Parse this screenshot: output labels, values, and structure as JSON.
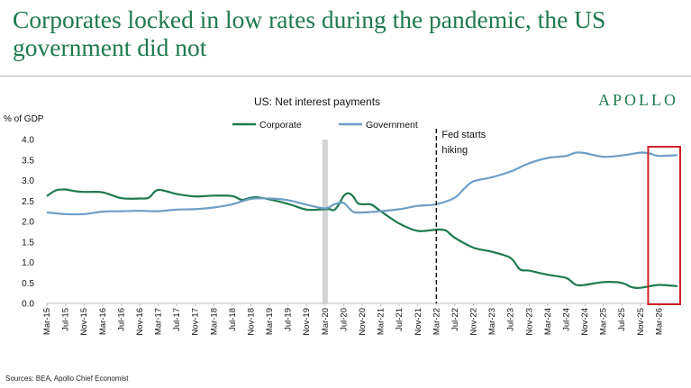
{
  "page": {
    "headline": "Corporates locked in low rates during the pandemic, the US government did not",
    "brand": "APOLLO",
    "source": "Sources: BEA, Apollo Chief Economist"
  },
  "chart_data": {
    "type": "line",
    "title": "US: Net interest payments",
    "ylabel": "% of GDP",
    "xlabel": "",
    "ylim": [
      0,
      4.0
    ],
    "yticks": [
      "0.0",
      "0.5",
      "1.0",
      "1.5",
      "2.0",
      "2.5",
      "3.0",
      "3.5",
      "4.0"
    ],
    "x_tick_labels": [
      "Mar-15",
      "Jul-15",
      "Nov-15",
      "Mar-16",
      "Jul-16",
      "Nov-16",
      "Mar-17",
      "Jul-17",
      "Nov-17",
      "Mar-18",
      "Jul-18",
      "Nov-18",
      "Mar-19",
      "Jul-19",
      "Nov-19",
      "Mar-20",
      "Jul-20",
      "Nov-20",
      "Mar-21",
      "Jul-21",
      "Nov-21",
      "Mar-22",
      "Jul-22",
      "Nov-22",
      "Mar-23",
      "Jul-23",
      "Nov-23",
      "Mar-24",
      "Jul-24",
      "Nov-24",
      "Mar-25",
      "Jul-25",
      "Nov-25",
      "Mar-26"
    ],
    "x_start": "Mar-15",
    "x_end": "Jul-26",
    "legend_position": "top-center",
    "series": [
      {
        "name": "Corporate",
        "color": "#1e7a4e",
        "points": [
          [
            "Mar-15",
            2.62
          ],
          [
            "May-15",
            2.76
          ],
          [
            "Jul-15",
            2.78
          ],
          [
            "Sep-15",
            2.74
          ],
          [
            "Nov-15",
            2.72
          ],
          [
            "Mar-16",
            2.71
          ],
          [
            "Jul-16",
            2.57
          ],
          [
            "Nov-16",
            2.56
          ],
          [
            "Jan-17",
            2.58
          ],
          [
            "Mar-17",
            2.77
          ],
          [
            "Jul-17",
            2.67
          ],
          [
            "Nov-17",
            2.61
          ],
          [
            "Mar-18",
            2.63
          ],
          [
            "Jul-18",
            2.62
          ],
          [
            "Sep-18",
            2.53
          ],
          [
            "Nov-18",
            2.58
          ],
          [
            "Jan-19",
            2.58
          ],
          [
            "Jul-19",
            2.43
          ],
          [
            "Nov-19",
            2.29
          ],
          [
            "Mar-20",
            2.3
          ],
          [
            "Apr-20",
            2.3
          ],
          [
            "May-20",
            2.28
          ],
          [
            "Jun-20",
            2.42
          ],
          [
            "Jul-20",
            2.62
          ],
          [
            "Aug-20",
            2.69
          ],
          [
            "Sep-20",
            2.62
          ],
          [
            "Oct-20",
            2.45
          ],
          [
            "Nov-20",
            2.42
          ],
          [
            "Jan-21",
            2.41
          ],
          [
            "Mar-21",
            2.25
          ],
          [
            "Jul-21",
            1.95
          ],
          [
            "Nov-21",
            1.77
          ],
          [
            "Mar-22",
            1.8
          ],
          [
            "May-22",
            1.78
          ],
          [
            "Jul-22",
            1.6
          ],
          [
            "Nov-22",
            1.36
          ],
          [
            "Mar-23",
            1.26
          ],
          [
            "Jul-23",
            1.11
          ],
          [
            "Sep-23",
            0.83
          ],
          [
            "Nov-23",
            0.8
          ],
          [
            "Mar-24",
            0.7
          ],
          [
            "Jul-24",
            0.62
          ],
          [
            "Sep-24",
            0.46
          ],
          [
            "Nov-24",
            0.45
          ],
          [
            "Mar-25",
            0.52
          ],
          [
            "Jul-25",
            0.5
          ],
          [
            "Sep-25",
            0.4
          ],
          [
            "Nov-25",
            0.38
          ],
          [
            "Mar-26",
            0.45
          ],
          [
            "Jul-26",
            0.42
          ]
        ]
      },
      {
        "name": "Government",
        "color": "#6d9ec7",
        "points": [
          [
            "Mar-15",
            2.22
          ],
          [
            "Jul-15",
            2.18
          ],
          [
            "Nov-15",
            2.18
          ],
          [
            "Mar-16",
            2.24
          ],
          [
            "Jul-16",
            2.25
          ],
          [
            "Nov-16",
            2.26
          ],
          [
            "Mar-17",
            2.25
          ],
          [
            "Jul-17",
            2.29
          ],
          [
            "Nov-17",
            2.3
          ],
          [
            "Mar-18",
            2.34
          ],
          [
            "Jul-18",
            2.42
          ],
          [
            "Nov-18",
            2.55
          ],
          [
            "Mar-19",
            2.56
          ],
          [
            "Jul-19",
            2.52
          ],
          [
            "Nov-19",
            2.41
          ],
          [
            "Mar-20",
            2.32
          ],
          [
            "May-20",
            2.42
          ],
          [
            "Jul-20",
            2.45
          ],
          [
            "Sep-20",
            2.24
          ],
          [
            "Nov-20",
            2.22
          ],
          [
            "Mar-21",
            2.25
          ],
          [
            "Jul-21",
            2.3
          ],
          [
            "Nov-21",
            2.38
          ],
          [
            "Mar-22",
            2.42
          ],
          [
            "Jul-22",
            2.58
          ],
          [
            "Sep-22",
            2.8
          ],
          [
            "Nov-22",
            2.98
          ],
          [
            "Mar-23",
            3.08
          ],
          [
            "Jul-23",
            3.22
          ],
          [
            "Nov-23",
            3.42
          ],
          [
            "Mar-24",
            3.55
          ],
          [
            "Jul-24",
            3.6
          ],
          [
            "Sep-24",
            3.68
          ],
          [
            "Nov-24",
            3.67
          ],
          [
            "Mar-25",
            3.58
          ],
          [
            "Jul-25",
            3.61
          ],
          [
            "Nov-25",
            3.68
          ],
          [
            "Jan-26",
            3.66
          ],
          [
            "Mar-26",
            3.6
          ],
          [
            "Jul-26",
            3.62
          ]
        ]
      }
    ],
    "annotations": [
      {
        "type": "shaded-band",
        "x": "Mar-20",
        "color": "#d3d3d3"
      },
      {
        "type": "vertical-dashed-line",
        "x": "Mar-22",
        "label_lines": [
          "Fed starts",
          "hiking"
        ]
      },
      {
        "type": "highlight-box",
        "x_from": "Mar-26",
        "x_to": "Jul-26",
        "color": "#d0202a"
      }
    ]
  }
}
